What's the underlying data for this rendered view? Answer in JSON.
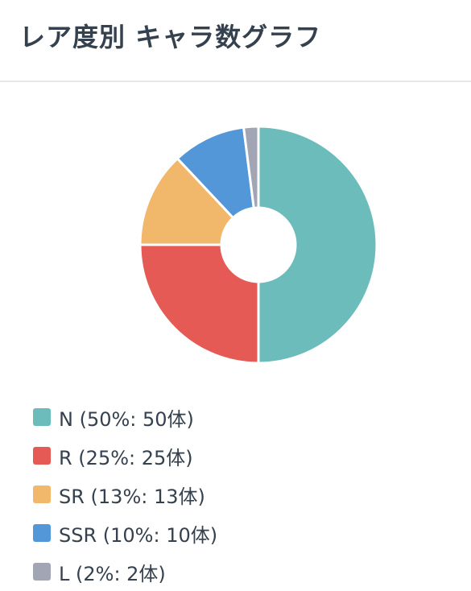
{
  "header": {
    "title": "レア度別 キャラ数グラフ"
  },
  "chart_data": {
    "type": "pie",
    "donut": true,
    "legend_position": "bottom-left",
    "categories": [
      "N",
      "R",
      "SR",
      "SSR",
      "L"
    ],
    "values": [
      50,
      25,
      13,
      10,
      2
    ],
    "percentages": [
      50,
      25,
      13,
      10,
      2
    ],
    "colors": [
      "#6bbcbb",
      "#e55a55",
      "#f1b76b",
      "#5497d8",
      "#a2a6b4"
    ],
    "legend_labels": [
      "N (50%: 50体)",
      "R (25%: 25体)",
      "SR (13%: 13体)",
      "SSR (10%: 10体)",
      "L (2%: 2体)"
    ]
  }
}
